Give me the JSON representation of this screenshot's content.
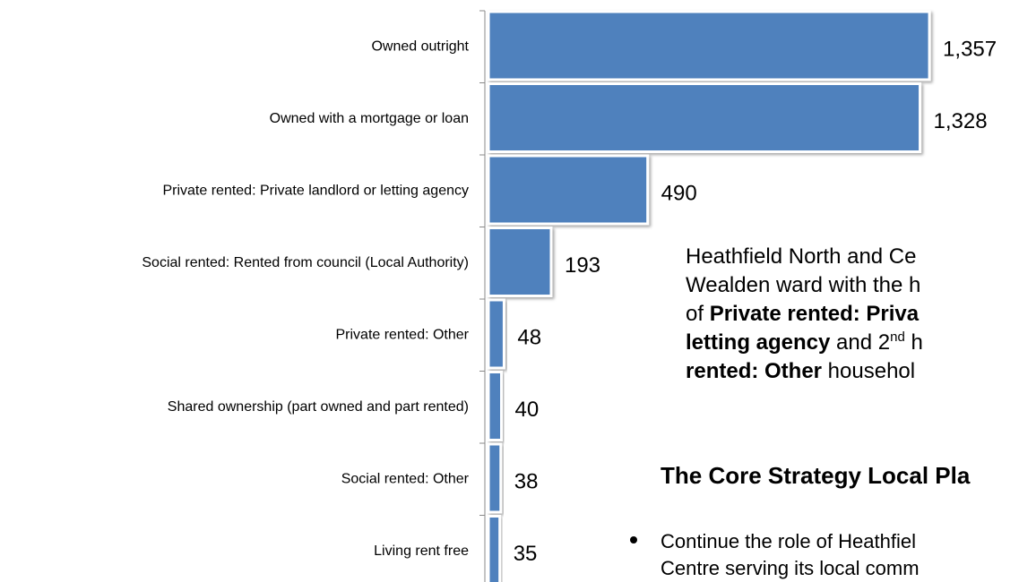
{
  "chart_data": {
    "type": "hbar",
    "categories": [
      "Owned outright",
      "Owned with a mortgage or loan",
      "Private rented: Private landlord or letting agency",
      "Social rented: Rented from council (Local Authority)",
      "Private rented: Other",
      "Shared ownership (part owned and part rented)",
      "Social rented: Other",
      "Living rent free"
    ],
    "values": [
      1357,
      1328,
      490,
      193,
      48,
      40,
      38,
      35
    ],
    "value_labels": [
      "1,357",
      "1,328",
      "490",
      "193",
      "48",
      "40",
      "38",
      "35"
    ],
    "color": "#4f81bd"
  },
  "text": {
    "paragraph": [
      [
        {
          "text": "Heathfield North and Ce"
        }
      ],
      [
        {
          "text": "Wealden ward with the h"
        }
      ],
      [
        {
          "text": "of "
        },
        {
          "text": "Private rented: Priva",
          "bold": true
        }
      ],
      [
        {
          "text": "letting agency",
          "bold": true
        },
        {
          "text": " and 2"
        },
        {
          "text": "nd",
          "sup": true
        },
        {
          "text": " h"
        }
      ],
      [
        {
          "text": "rented: Other",
          "bold": true
        },
        {
          "text": " househol"
        }
      ]
    ],
    "heading": "The Core Strategy Local Pla",
    "bullets": [
      [
        "Continue the role of Heathfiel",
        "Centre serving its local comm"
      ]
    ]
  }
}
